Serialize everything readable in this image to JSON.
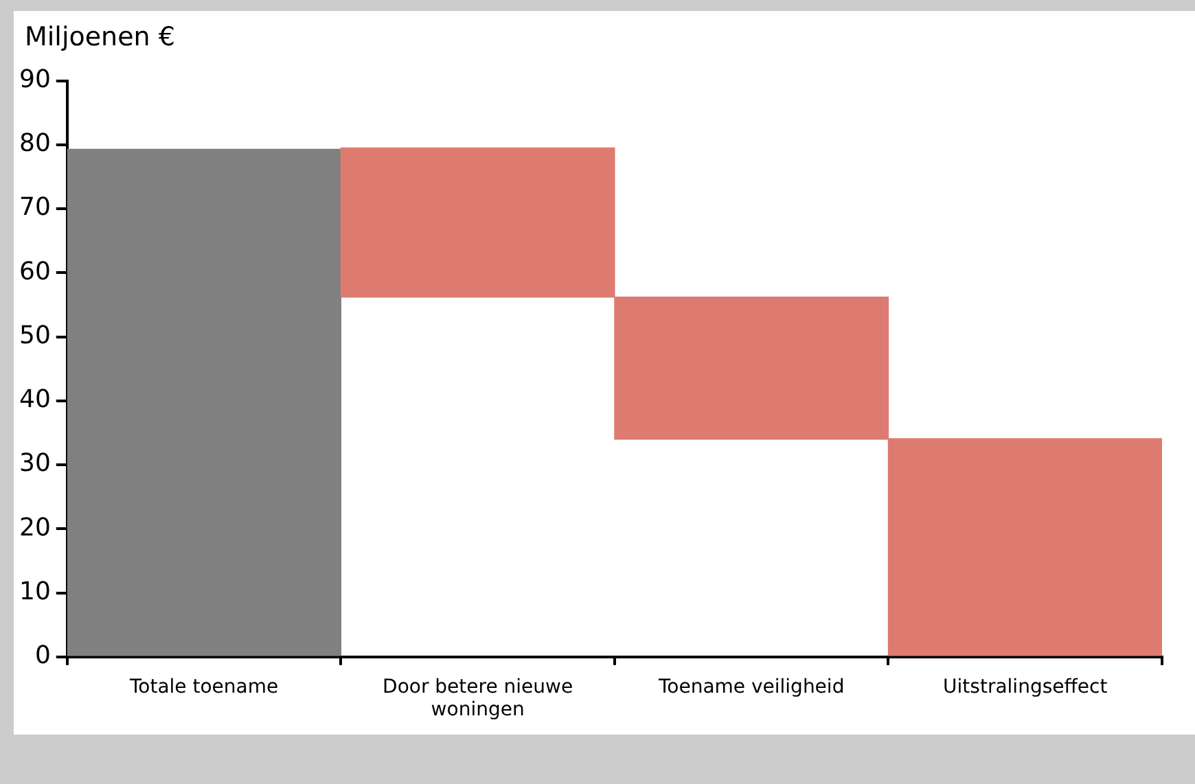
{
  "chart_data": {
    "type": "bar",
    "ylabel": "Miljoenen €",
    "categories": [
      "Totale toename",
      "Door betere nieuwe woningen",
      "Toename veiligheid",
      "Uitstralingseffect"
    ],
    "values": [
      79.3,
      23.3,
      22.2,
      34.1
    ],
    "base": [
      0,
      56.2,
      34,
      0
    ],
    "colors": [
      "#808080",
      "#de7b70",
      "#de7b70",
      "#de7b70"
    ],
    "ylim": [
      0,
      90
    ],
    "yticks": [
      0,
      10,
      20,
      30,
      40,
      50,
      60,
      70,
      80,
      90
    ],
    "grid": false,
    "legend": false
  }
}
